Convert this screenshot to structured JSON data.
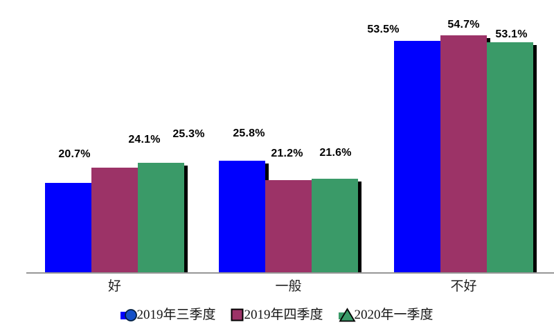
{
  "chart_data": {
    "type": "bar",
    "title": "",
    "xlabel": "",
    "ylabel": "",
    "categories": [
      "好",
      "一般",
      "不好"
    ],
    "series": [
      {
        "name": "2019年三季度",
        "color": "#0000FE",
        "marker": "circle-marker-icon",
        "marker_fill": "#1450C8",
        "values": [
          20.7,
          25.8,
          53.5
        ],
        "labels": [
          "20.7%",
          "25.8%",
          "53.5%"
        ]
      },
      {
        "name": "2019年四季度",
        "color": "#9C3367",
        "marker": "square-marker-icon",
        "marker_fill": "#9C3367",
        "values": [
          24.1,
          21.2,
          54.7
        ],
        "labels": [
          "24.1%",
          "21.2%",
          "54.7%"
        ]
      },
      {
        "name": "2020年一季度",
        "color": "#3A9A68",
        "marker": "triangle-marker-icon",
        "marker_fill": "#3A9A68",
        "values": [
          25.3,
          21.6,
          53.1
        ],
        "labels": [
          "25.3%",
          "21.6%",
          "53.1%"
        ]
      }
    ],
    "value_suffix": "%",
    "ylim": [
      0,
      60
    ],
    "grid": false,
    "legend_position": "bottom",
    "bar_shadow": true,
    "colors": {
      "shadow": "#000000",
      "axis_line": "#969696",
      "value_label": "#000000",
      "category_label": "#1f1f1f",
      "background": "#FFFFFF"
    }
  }
}
